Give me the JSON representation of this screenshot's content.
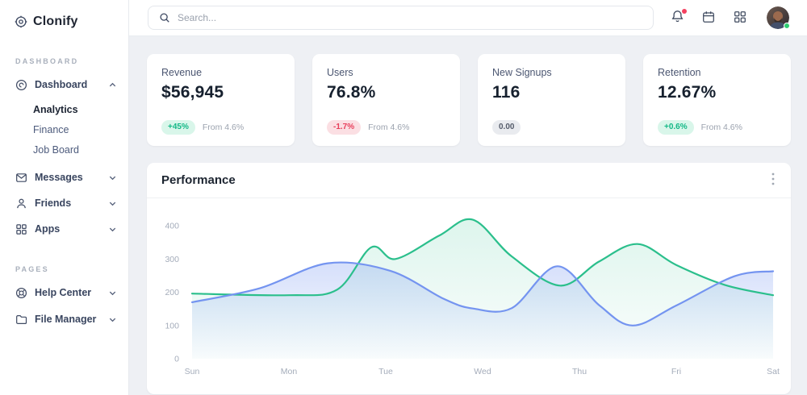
{
  "sidebar": {
    "logo_text": "Clonify",
    "sections": [
      {
        "label": "DASHBOARD",
        "items": [
          {
            "label": "Dashboard",
            "expanded": true,
            "children": [
              "Analytics",
              "Finance",
              "Job Board"
            ],
            "active_child": "Analytics"
          },
          {
            "label": "Messages"
          },
          {
            "label": "Friends"
          },
          {
            "label": "Apps"
          }
        ]
      },
      {
        "label": "PAGES",
        "items": [
          {
            "label": "Help Center"
          },
          {
            "label": "File Manager"
          }
        ]
      }
    ]
  },
  "topbar": {
    "search_placeholder": "Search...",
    "notification_badge_color": "#f4405f",
    "status_dot_color": "#2ecc71"
  },
  "icons": {
    "logo": "target-disc-icon",
    "dashboard": "disc-icon",
    "messages": "envelope-icon",
    "friends": "person-icon",
    "apps": "grid-icon",
    "help_center": "lifebuoy-icon",
    "file_manager": "folder-icon",
    "search": "magnifier-icon",
    "bell": "bell-icon",
    "calendar": "calendar-icon",
    "app_grid": "grid-icon",
    "menu": "kebab-icon"
  },
  "cards": [
    {
      "title": "Revenue",
      "value": "$56,945",
      "badge": "+45%",
      "badge_type": "positive",
      "note": "From 4.6%"
    },
    {
      "title": "Users",
      "value": "76.8%",
      "badge": "-1.7%",
      "badge_type": "negative",
      "note": "From 4.6%"
    },
    {
      "title": "New Signups",
      "value": "116",
      "badge": "0.00",
      "badge_type": "neutral",
      "note": ""
    },
    {
      "title": "Retention",
      "value": "12.67%",
      "badge": "+0.6%",
      "badge_type": "positive",
      "note": "From 4.6%"
    }
  ],
  "performance": {
    "title": "Performance"
  },
  "chart_data": {
    "type": "area",
    "title": "Performance",
    "x_labels": [
      "Sun",
      "Mon",
      "Tue",
      "Wed",
      "Thu",
      "Fri",
      "Sat"
    ],
    "y_ticks": [
      0,
      100,
      200,
      300,
      400
    ],
    "ylim": [
      0,
      440
    ],
    "grid": false,
    "legend": "none",
    "series": [
      {
        "name": "green",
        "color": "#2bbf8c",
        "fill_opacity": 0.16,
        "points": [
          [
            0,
            196
          ],
          [
            1,
            191
          ],
          [
            1.5,
            208
          ],
          [
            1.85,
            335
          ],
          [
            2.1,
            300
          ],
          [
            2.55,
            370
          ],
          [
            2.9,
            418
          ],
          [
            3.3,
            308
          ],
          [
            3.8,
            220
          ],
          [
            4.2,
            292
          ],
          [
            4.6,
            345
          ],
          [
            5.0,
            282
          ],
          [
            5.5,
            222
          ],
          [
            6,
            191
          ]
        ]
      },
      {
        "name": "blue",
        "color": "#7494f0",
        "fill_opacity": 0.3,
        "points": [
          [
            0,
            170
          ],
          [
            0.7,
            212
          ],
          [
            1.4,
            287
          ],
          [
            2.05,
            264
          ],
          [
            2.6,
            180
          ],
          [
            2.9,
            151
          ],
          [
            3.3,
            152
          ],
          [
            3.77,
            278
          ],
          [
            4.2,
            162
          ],
          [
            4.55,
            100
          ],
          [
            5.0,
            160
          ],
          [
            5.6,
            248
          ],
          [
            6,
            263
          ]
        ]
      }
    ]
  }
}
